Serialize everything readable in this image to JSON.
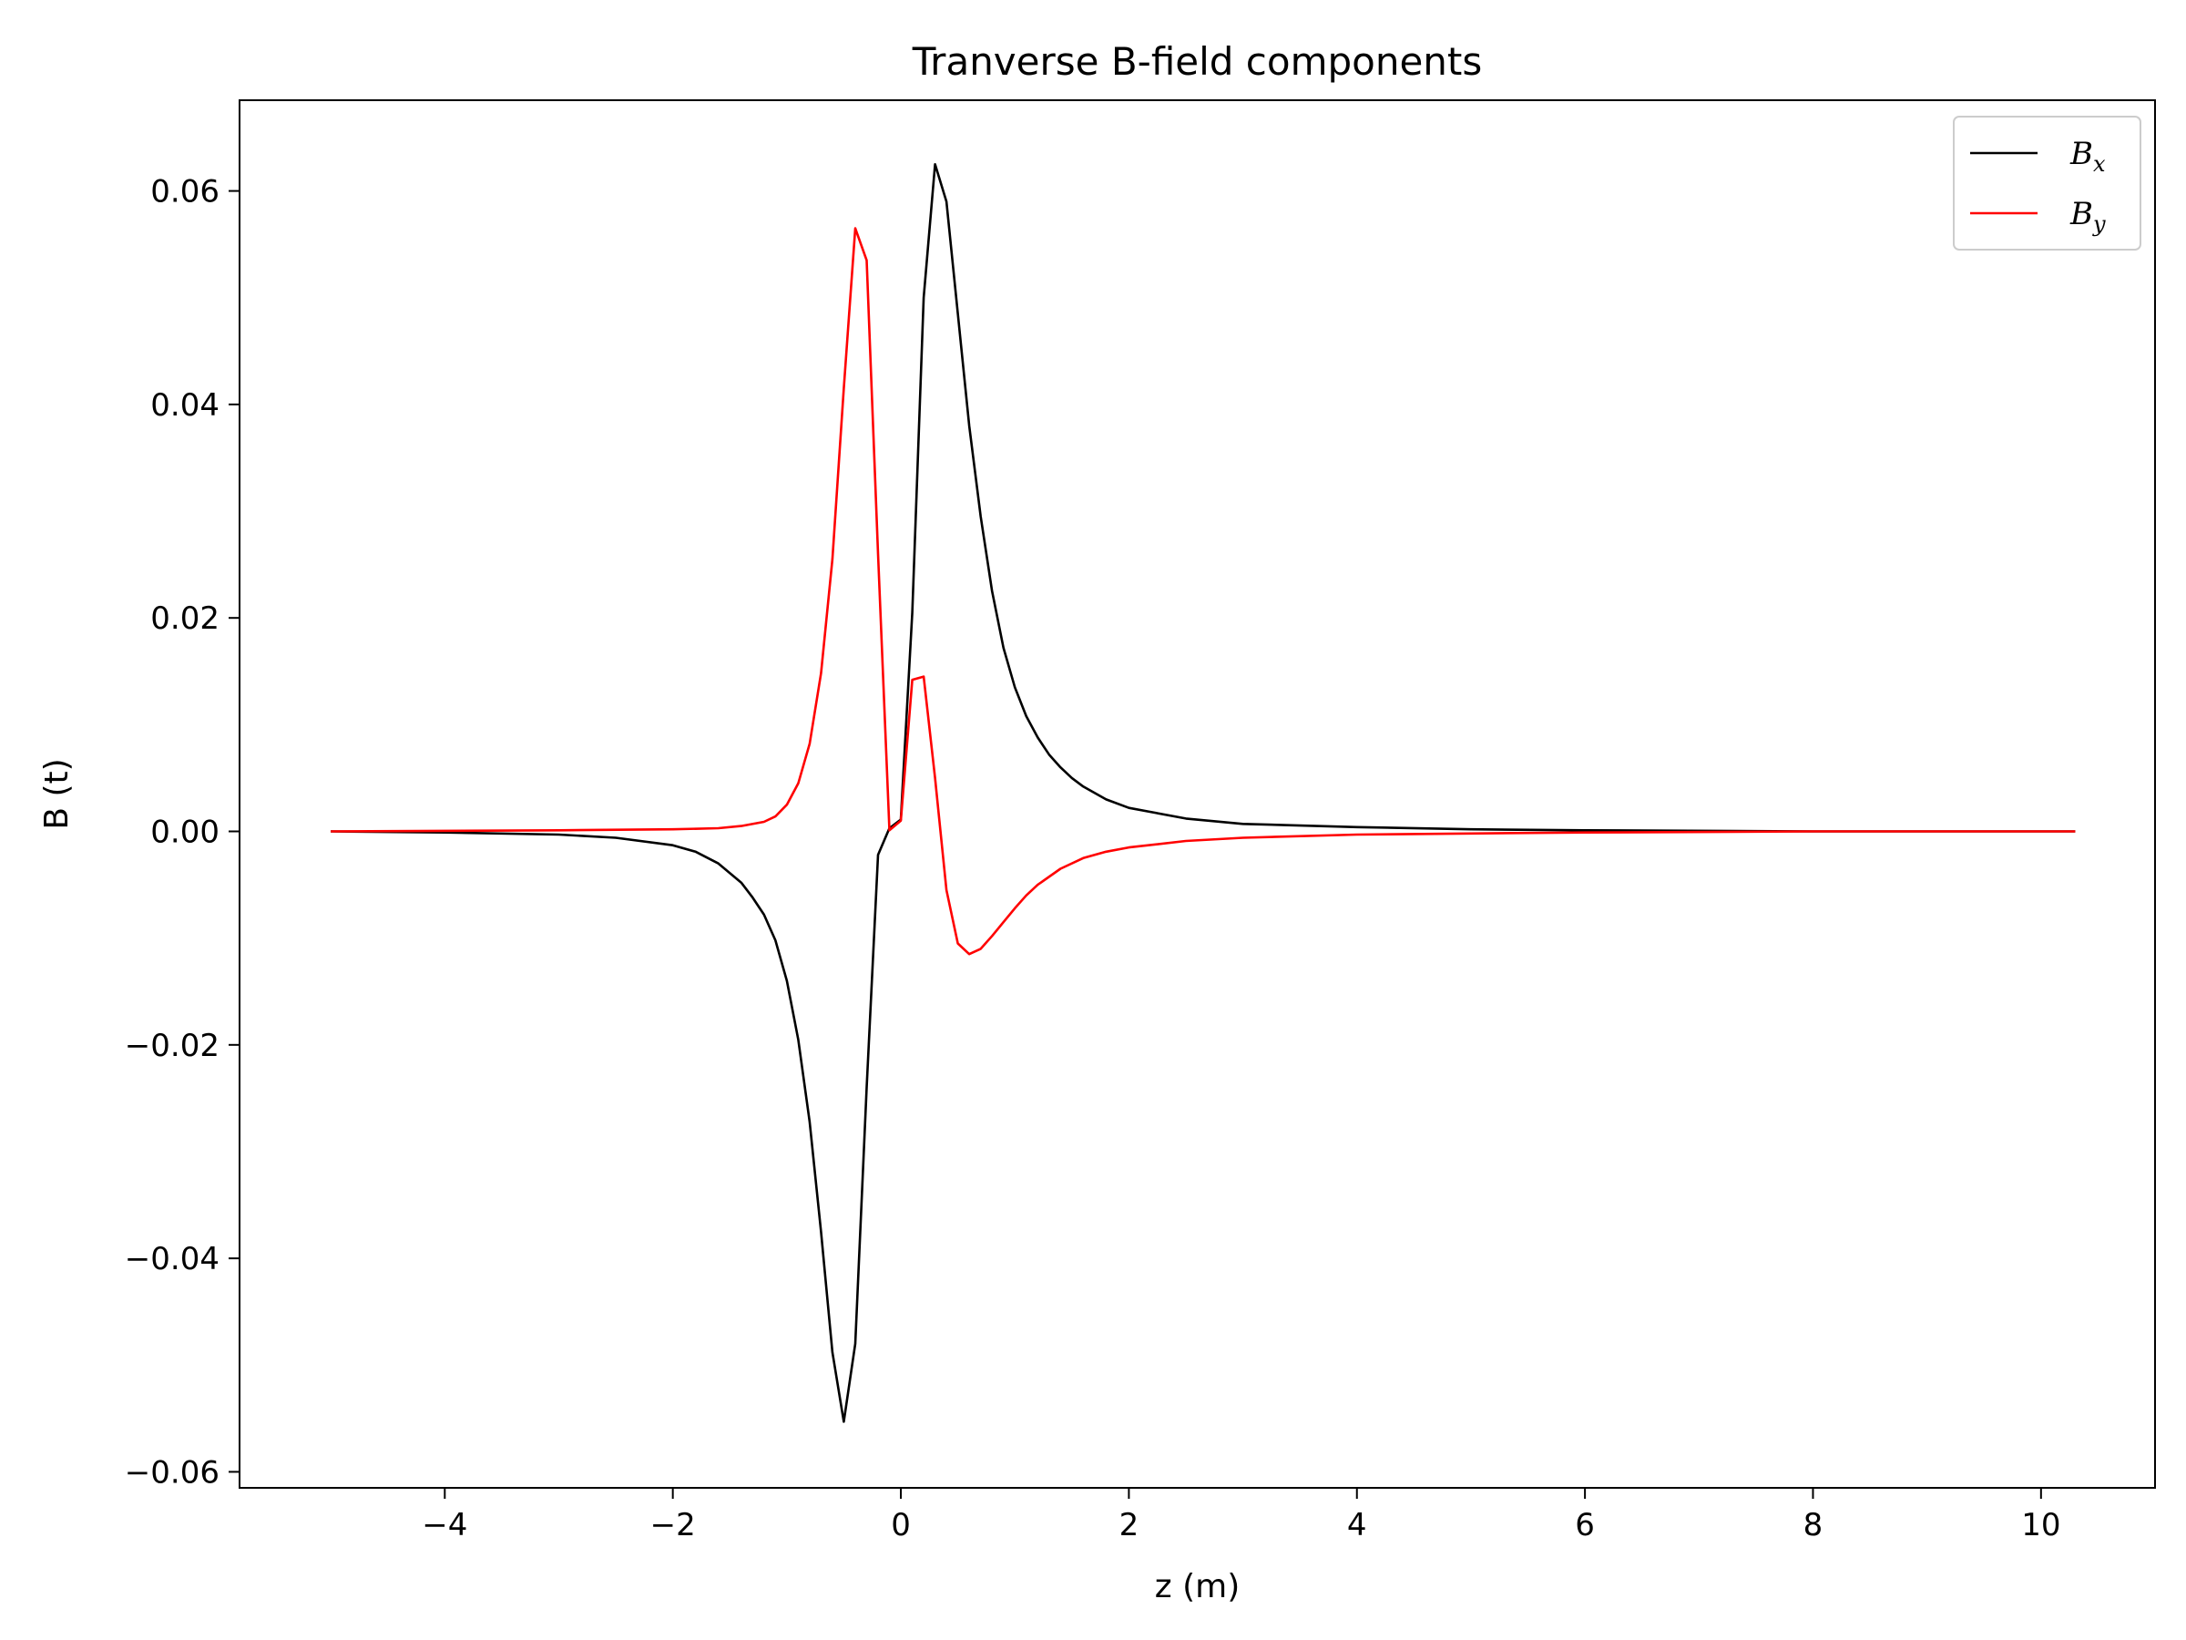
{
  "chart_data": {
    "type": "line",
    "title": "Tranverse B-field components",
    "xlabel": "z (m)",
    "ylabel": "B (t)",
    "xlim": [
      -5.8,
      11.0
    ],
    "ylim": [
      -0.0615,
      0.0685
    ],
    "xticks": [
      -4,
      -2,
      0,
      2,
      4,
      6,
      8,
      10
    ],
    "xtick_labels": [
      "−4",
      "−2",
      "0",
      "2",
      "4",
      "6",
      "8",
      "10"
    ],
    "yticks": [
      -0.06,
      -0.04,
      -0.02,
      0.0,
      0.02,
      0.04,
      0.06
    ],
    "ytick_labels": [
      "−0.06",
      "−0.04",
      "−0.02",
      "0.00",
      "0.02",
      "0.04",
      "0.06"
    ],
    "grid": false,
    "legend_position": "top-right",
    "series": [
      {
        "name": "B",
        "subscript": "x",
        "color": "#000000",
        "x": [
          -5.0,
          -4.0,
          -3.0,
          -2.5,
          -2.0,
          -1.8,
          -1.6,
          -1.4,
          -1.3,
          -1.2,
          -1.1,
          -1.0,
          -0.9,
          -0.8,
          -0.7,
          -0.6,
          -0.5,
          -0.4,
          -0.3,
          -0.2,
          -0.1,
          0.0,
          0.1,
          0.2,
          0.3,
          0.4,
          0.5,
          0.6,
          0.7,
          0.8,
          0.9,
          1.0,
          1.1,
          1.2,
          1.3,
          1.4,
          1.5,
          1.6,
          1.8,
          2.0,
          2.5,
          3.0,
          4.0,
          5.0,
          6.0,
          8.0,
          10.3
        ],
        "y": [
          0.0,
          -0.0001,
          -0.0003,
          -0.0006,
          -0.0013,
          -0.0019,
          -0.003,
          -0.0048,
          -0.0062,
          -0.0078,
          -0.0102,
          -0.014,
          -0.0195,
          -0.0272,
          -0.0375,
          -0.0488,
          -0.0553,
          -0.048,
          -0.024,
          -0.0022,
          0.0003,
          0.0011,
          0.0205,
          0.05,
          0.0625,
          0.059,
          0.0485,
          0.038,
          0.0295,
          0.0225,
          0.0172,
          0.0135,
          0.0108,
          0.0088,
          0.0072,
          0.006,
          0.005,
          0.0042,
          0.003,
          0.0022,
          0.0012,
          0.0007,
          0.0004,
          0.0002,
          0.0001,
          0.0,
          0.0
        ]
      },
      {
        "name": "B",
        "subscript": "y",
        "color": "#ff0000",
        "x": [
          -5.0,
          -3.0,
          -2.0,
          -1.6,
          -1.4,
          -1.2,
          -1.1,
          -1.0,
          -0.9,
          -0.8,
          -0.7,
          -0.6,
          -0.5,
          -0.4,
          -0.3,
          -0.2,
          -0.1,
          0.0,
          0.1,
          0.2,
          0.3,
          0.4,
          0.5,
          0.6,
          0.7,
          0.8,
          0.9,
          1.0,
          1.1,
          1.2,
          1.4,
          1.6,
          1.8,
          2.0,
          2.5,
          3.0,
          4.0,
          5.0,
          6.0,
          8.0,
          10.3
        ],
        "y": [
          0.0,
          0.0001,
          0.0002,
          0.0003,
          0.0005,
          0.0009,
          0.0014,
          0.0025,
          0.0045,
          0.0082,
          0.0148,
          0.0255,
          0.0415,
          0.0565,
          0.0535,
          0.026,
          0.0001,
          0.001,
          0.0142,
          0.0145,
          0.005,
          -0.0055,
          -0.0105,
          -0.0115,
          -0.011,
          -0.0098,
          -0.0085,
          -0.0072,
          -0.006,
          -0.005,
          -0.0035,
          -0.0025,
          -0.0019,
          -0.0015,
          -0.0009,
          -0.0006,
          -0.0003,
          -0.0002,
          -0.0001,
          0.0,
          0.0
        ]
      }
    ]
  }
}
